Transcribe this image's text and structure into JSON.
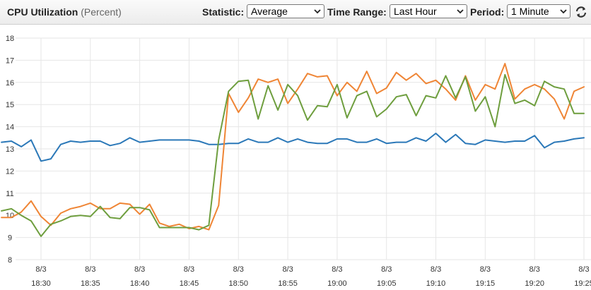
{
  "header": {
    "title": "CPU Utilization",
    "unit": "(Percent)",
    "statistic_label": "Statistic:",
    "statistic_value": "Average",
    "time_range_label": "Time Range:",
    "time_range_value": "Last Hour",
    "period_label": "Period:",
    "period_value": "1 Minute",
    "refresh_icon": "refresh-icon"
  },
  "colors": {
    "grid": "#e6e6e6",
    "axis_text": "#333333",
    "header_bg": "#eeeeee"
  },
  "chart_data": {
    "type": "line",
    "title": "CPU Utilization",
    "ylim": [
      8,
      18
    ],
    "yticks": [
      8,
      9,
      10,
      11,
      12,
      13,
      14,
      15,
      16,
      17,
      18
    ],
    "x_time_range": [
      "18:26",
      "19:25"
    ],
    "x_ticks": [
      {
        "date": "8/3",
        "time": "18:30"
      },
      {
        "date": "8/3",
        "time": "18:35"
      },
      {
        "date": "8/3",
        "time": "18:40"
      },
      {
        "date": "8/3",
        "time": "18:45"
      },
      {
        "date": "8/3",
        "time": "18:50"
      },
      {
        "date": "8/3",
        "time": "18:55"
      },
      {
        "date": "8/3",
        "time": "19:00"
      },
      {
        "date": "8/3",
        "time": "19:05"
      },
      {
        "date": "8/3",
        "time": "19:10"
      },
      {
        "date": "8/3",
        "time": "19:15"
      },
      {
        "date": "8/3",
        "time": "19:20"
      },
      {
        "date": "8/3",
        "time": "19:25"
      }
    ],
    "grid": true,
    "series": [
      {
        "color": "#2b78b8",
        "x": [
          "18:26",
          "18:27",
          "18:28",
          "18:29",
          "18:30",
          "18:31",
          "18:32",
          "18:33",
          "18:34",
          "18:35",
          "18:36",
          "18:37",
          "18:38",
          "18:39",
          "18:40",
          "18:41",
          "18:42",
          "18:43",
          "18:44",
          "18:45",
          "18:46",
          "18:47",
          "18:48",
          "18:49",
          "18:50",
          "18:51",
          "18:52",
          "18:53",
          "18:54",
          "18:55",
          "18:56",
          "18:57",
          "18:58",
          "18:59",
          "19:00",
          "19:01",
          "19:02",
          "19:03",
          "19:04",
          "19:05",
          "19:06",
          "19:07",
          "19:08",
          "19:09",
          "19:10",
          "19:11",
          "19:12",
          "19:13",
          "19:14",
          "19:15",
          "19:16",
          "19:17",
          "19:18",
          "19:19",
          "19:20",
          "19:21",
          "19:22",
          "19:23",
          "19:24",
          "19:25"
        ],
        "values": [
          13.3,
          13.35,
          13.1,
          13.4,
          12.45,
          12.55,
          13.2,
          13.35,
          13.3,
          13.35,
          13.35,
          13.15,
          13.25,
          13.5,
          13.3,
          13.35,
          13.4,
          13.4,
          13.4,
          13.4,
          13.35,
          13.2,
          13.2,
          13.25,
          13.25,
          13.45,
          13.3,
          13.3,
          13.5,
          13.3,
          13.45,
          13.3,
          13.25,
          13.25,
          13.45,
          13.45,
          13.3,
          13.3,
          13.45,
          13.25,
          13.3,
          13.3,
          13.5,
          13.35,
          13.7,
          13.3,
          13.65,
          13.25,
          13.2,
          13.4,
          13.35,
          13.3,
          13.35,
          13.35,
          13.6,
          13.05,
          13.3,
          13.35,
          13.45,
          13.5
        ]
      },
      {
        "color": "#ef8535",
        "x": [
          "18:26",
          "18:27",
          "18:28",
          "18:29",
          "18:30",
          "18:31",
          "18:32",
          "18:33",
          "18:34",
          "18:35",
          "18:36",
          "18:37",
          "18:38",
          "18:39",
          "18:40",
          "18:41",
          "18:42",
          "18:43",
          "18:44",
          "18:45",
          "18:46",
          "18:47",
          "18:48",
          "18:49",
          "18:50",
          "18:51",
          "18:52",
          "18:53",
          "18:54",
          "18:55",
          "18:56",
          "18:57",
          "18:58",
          "18:59",
          "19:00",
          "19:01",
          "19:02",
          "19:03",
          "19:04",
          "19:05",
          "19:06",
          "19:07",
          "19:08",
          "19:09",
          "19:10",
          "19:11",
          "19:12",
          "19:13",
          "19:14",
          "19:15",
          "19:16",
          "19:17",
          "19:18",
          "19:19",
          "19:20",
          "19:21",
          "19:22",
          "19:23",
          "19:24",
          "19:25"
        ],
        "values": [
          9.9,
          9.9,
          10.15,
          10.65,
          9.95,
          9.55,
          10.1,
          10.3,
          10.4,
          10.55,
          10.3,
          10.3,
          10.55,
          10.5,
          10.05,
          10.5,
          9.65,
          9.5,
          9.6,
          9.4,
          9.5,
          9.35,
          10.45,
          15.5,
          14.65,
          15.3,
          16.15,
          16.0,
          16.15,
          15.05,
          15.7,
          16.4,
          16.25,
          16.3,
          15.4,
          16.0,
          15.6,
          16.5,
          15.5,
          15.75,
          16.45,
          16.1,
          16.4,
          15.95,
          16.1,
          15.7,
          15.2,
          16.3,
          15.2,
          15.9,
          15.7,
          16.85,
          15.25,
          15.7,
          15.9,
          15.7,
          15.25,
          14.35,
          15.6,
          15.8
        ]
      },
      {
        "color": "#6e9e3e",
        "x": [
          "18:26",
          "18:27",
          "18:28",
          "18:29",
          "18:30",
          "18:31",
          "18:32",
          "18:33",
          "18:34",
          "18:35",
          "18:36",
          "18:37",
          "18:38",
          "18:39",
          "18:40",
          "18:41",
          "18:42",
          "18:43",
          "18:44",
          "18:45",
          "18:46",
          "18:47",
          "18:48",
          "18:49",
          "18:50",
          "18:51",
          "18:52",
          "18:53",
          "18:54",
          "18:55",
          "18:56",
          "18:57",
          "18:58",
          "18:59",
          "19:00",
          "19:01",
          "19:02",
          "19:03",
          "19:04",
          "19:05",
          "19:06",
          "19:07",
          "19:08",
          "19:09",
          "19:10",
          "19:11",
          "19:12",
          "19:13",
          "19:14",
          "19:15",
          "19:16",
          "19:17",
          "19:18",
          "19:19",
          "19:20",
          "19:21",
          "19:22",
          "19:23",
          "19:24",
          "19:25"
        ],
        "values": [
          10.2,
          10.3,
          10.0,
          9.75,
          9.05,
          9.6,
          9.75,
          9.95,
          10.0,
          9.95,
          10.4,
          9.9,
          9.85,
          10.35,
          10.35,
          10.25,
          9.45,
          9.45,
          9.45,
          9.45,
          9.35,
          9.55,
          13.4,
          15.6,
          16.05,
          16.1,
          14.35,
          15.85,
          14.75,
          15.9,
          15.4,
          14.3,
          14.95,
          14.9,
          15.9,
          14.4,
          15.4,
          15.6,
          14.45,
          14.8,
          15.35,
          15.45,
          14.5,
          15.4,
          15.3,
          16.3,
          15.3,
          16.25,
          14.7,
          15.35,
          14.0,
          16.35,
          15.05,
          15.2,
          14.95,
          16.05,
          15.8,
          15.7,
          14.6,
          14.6
        ]
      }
    ]
  }
}
